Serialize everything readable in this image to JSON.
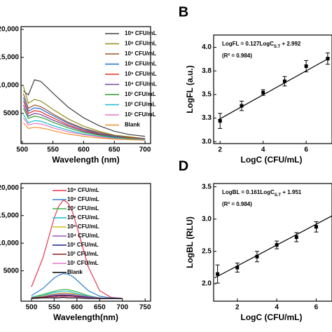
{
  "chart_data": [
    {
      "type": "line",
      "xlabel": "Wavelength (nm)",
      "x": [
        502,
        510,
        520,
        530,
        540,
        550,
        575,
        600,
        625,
        650,
        675,
        700
      ],
      "xlim": [
        498,
        709
      ],
      "xticks": [
        500,
        550,
        600,
        650,
        700
      ],
      "ylim": [
        -400,
        20500
      ],
      "yticks": [
        5000,
        {
          "value": 10000,
          "label": "10,000"
        },
        {
          "value": 15000,
          "label": "15,000"
        },
        {
          "value": 20000,
          "label": "20,000"
        }
      ],
      "legend": "upper right",
      "series": [
        {
          "name": "10⁹ CFU/mL",
          "color": "#404040",
          "values": [
            9000,
            8300,
            11000,
            10700,
            9700,
            8600,
            6100,
            4200,
            2800,
            1800,
            1200,
            900
          ]
        },
        {
          "name": "10⁸ CFU/mL",
          "color": "#8c8c1e",
          "values": [
            9800,
            6800,
            7500,
            7200,
            6500,
            5700,
            4000,
            2700,
            1800,
            1100,
            800,
            500
          ]
        },
        {
          "name": "10⁷ CFU/mL",
          "color": "#a0522d",
          "values": [
            8500,
            5900,
            6500,
            6200,
            5600,
            4900,
            3400,
            2300,
            1600,
            1000,
            700,
            500
          ]
        },
        {
          "name": "10⁶ CFU/mL",
          "color": "#1f6fd1",
          "values": [
            7800,
            5400,
            6000,
            5800,
            5200,
            4600,
            3200,
            2200,
            1400,
            900,
            600,
            400
          ]
        },
        {
          "name": "10⁵ CFU/mL",
          "color": "#e0302a",
          "values": [
            7200,
            5000,
            5500,
            5300,
            4700,
            4200,
            2900,
            2000,
            1300,
            800,
            600,
            400
          ]
        },
        {
          "name": "10⁴ CFU/mL",
          "color": "#7b3fa0",
          "values": [
            6500,
            4500,
            5000,
            4800,
            4300,
            3800,
            2700,
            1800,
            1200,
            800,
            500,
            400
          ]
        },
        {
          "name": "10³ CFU/mL",
          "color": "#2ca02c",
          "values": [
            5900,
            4100,
            4500,
            4300,
            3900,
            3400,
            2400,
            1600,
            1100,
            700,
            500,
            300
          ]
        },
        {
          "name": "10² CFU/mL",
          "color": "#17becf",
          "values": [
            4800,
            3300,
            3700,
            3600,
            3200,
            2800,
            2000,
            1300,
            900,
            600,
            400,
            300
          ]
        },
        {
          "name": "10¹ CFU/mL",
          "color": "#e377c2",
          "values": [
            4200,
            2900,
            3200,
            3100,
            2800,
            2400,
            1700,
            1200,
            800,
            500,
            300,
            200
          ]
        },
        {
          "name": "Blank",
          "color": "#f28e2b",
          "values": [
            3300,
            2300,
            2500,
            2400,
            2200,
            1900,
            1300,
            900,
            600,
            400,
            300,
            200
          ]
        }
      ]
    },
    {
      "type": "scatter",
      "label": "B",
      "xlabel": "LogC (CFU/mL)",
      "ylabel": "LogFL (a.u.)",
      "annotation": {
        "text": "LogFL = 0.127LogC",
        "subscript": "S.T",
        "text_after": " + 2.992",
        "r2": "(R² = 0.984)"
      },
      "xlim": [
        1.7,
        7.2
      ],
      "xticks": [
        2,
        4,
        6
      ],
      "ylim": [
        2.98,
        4.13
      ],
      "yticks": [
        {
          "value": 3.0,
          "label": "3.0"
        },
        {
          "value": 3.25,
          "label": "3.3"
        },
        {
          "value": 3.5,
          "label": "3.5"
        },
        {
          "value": 3.75,
          "label": "3.8"
        },
        {
          "value": 4.0,
          "label": "4.0"
        }
      ],
      "color": "#000000",
      "x": [
        2,
        3,
        4,
        5,
        6,
        7
      ],
      "values": [
        3.22,
        3.38,
        3.52,
        3.64,
        3.8,
        3.88
      ],
      "errors": [
        0.08,
        0.05,
        0.03,
        0.05,
        0.06,
        0.06
      ],
      "trend": {
        "x": [
          1.9,
          7.1
        ],
        "values": [
          3.23,
          3.89
        ]
      }
    },
    {
      "type": "line",
      "xlabel": "Wavelength(nm)",
      "x": [
        500,
        525,
        550,
        560,
        570,
        580,
        590,
        600,
        625,
        650,
        675,
        700
      ],
      "xlim": [
        477,
        762
      ],
      "xticks": [
        500,
        550,
        600,
        650,
        700,
        750
      ],
      "ylim": [
        -500,
        20800
      ],
      "yticks": [
        5000,
        {
          "value": 10000,
          "label": "10,000"
        },
        {
          "value": 15000,
          "label": "15,000"
        },
        {
          "value": 20000,
          "label": "20,000"
        }
      ],
      "legend": "upper right",
      "series": [
        {
          "name": "10⁹ CFU/mL",
          "color": "#e8364f",
          "values": [
            2100,
            7300,
            14600,
            16700,
            17800,
            17300,
            15700,
            13000,
            5700,
            1400,
            200,
            0
          ]
        },
        {
          "name": "10⁸ CFU/mL",
          "color": "#2f7fd0",
          "values": [
            500,
            1800,
            3700,
            4200,
            4500,
            4400,
            4000,
            3300,
            1400,
            400,
            100,
            0
          ]
        },
        {
          "name": "10⁷ CFU/mL",
          "color": "#3cb44b",
          "values": [
            200,
            700,
            1300,
            1500,
            1600,
            1600,
            1400,
            1200,
            500,
            100,
            0,
            0
          ]
        },
        {
          "name": "10⁶ CFU/mL",
          "color": "#17becf",
          "values": [
            200,
            500,
            1100,
            1200,
            1300,
            1300,
            1100,
            900,
            400,
            100,
            0,
            0
          ]
        },
        {
          "name": "10⁵ CFU/mL",
          "color": "#d4c21c",
          "values": [
            100,
            400,
            800,
            900,
            1000,
            1000,
            900,
            700,
            300,
            100,
            0,
            0
          ]
        },
        {
          "name": "10⁴ CFU/mL",
          "color": "#9b59b6",
          "values": [
            100,
            300,
            700,
            800,
            800,
            800,
            700,
            600,
            300,
            100,
            0,
            0
          ]
        },
        {
          "name": "10³ CFU/mL",
          "color": "#1a237e",
          "values": [
            100,
            200,
            500,
            600,
            600,
            600,
            500,
            400,
            200,
            0,
            0,
            0
          ]
        },
        {
          "name": "10² CFU/mL",
          "color": "#8b1a1a",
          "values": [
            100,
            200,
            400,
            400,
            500,
            400,
            400,
            300,
            100,
            0,
            0,
            0
          ]
        },
        {
          "name": "10¹ CFU/mL",
          "color": "#e377c2",
          "values": [
            0,
            100,
            200,
            300,
            300,
            300,
            300,
            200,
            100,
            0,
            0,
            0
          ]
        },
        {
          "name": "Blank",
          "color": "#000000",
          "values": [
            0,
            100,
            100,
            100,
            200,
            100,
            100,
            100,
            0,
            0,
            0,
            0
          ]
        }
      ]
    },
    {
      "type": "scatter",
      "label": "D",
      "xlabel": "LogC (CFU/mL)",
      "ylabel": "LogBL (RLU)",
      "annotation": {
        "text": "LogBL = 0.161LogC",
        "subscript": "S.T",
        "text_after": " + 1.951",
        "r2": "(R² = 0.984)"
      },
      "xlim": [
        0.8,
        6.8
      ],
      "xticks": [
        2,
        4,
        6
      ],
      "ylim": [
        1.73,
        3.55
      ],
      "yticks": [
        {
          "value": 2.0,
          "label": "2.0"
        },
        2.5,
        {
          "value": 3.0,
          "label": "3.0"
        },
        3.5
      ],
      "color": "#000000",
      "x": [
        1,
        2,
        3,
        4,
        5,
        6
      ],
      "values": [
        2.15,
        2.25,
        2.42,
        2.6,
        2.72,
        2.88
      ],
      "errors": [
        0.14,
        0.07,
        0.08,
        0.06,
        0.07,
        0.08
      ],
      "trend": {
        "x": [
          0.85,
          6.8
        ],
        "values": [
          2.09,
          3.05
        ]
      }
    }
  ]
}
